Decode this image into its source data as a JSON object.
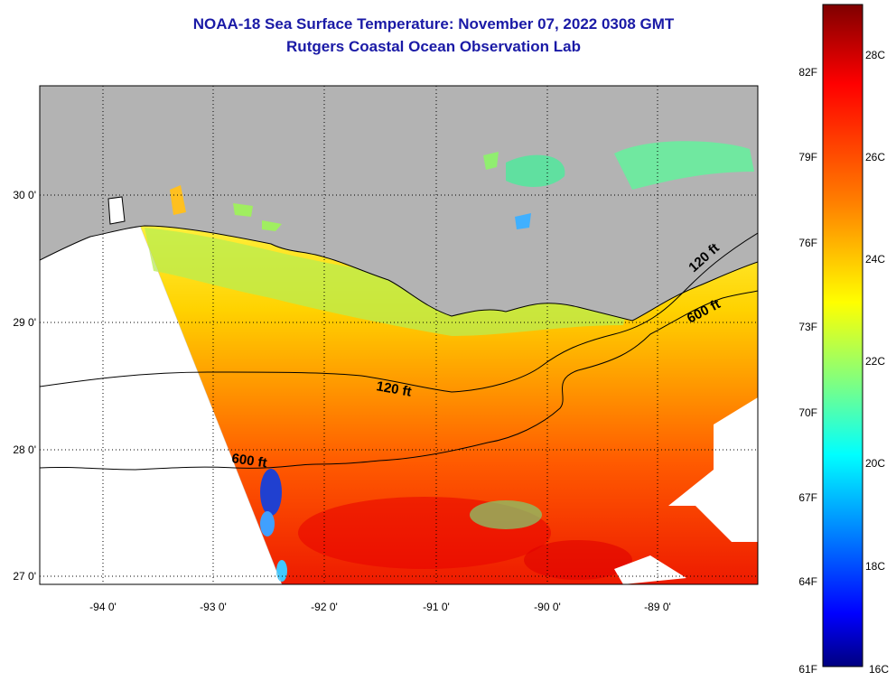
{
  "title": {
    "line1": "NOAA-18 Sea Surface Temperature:  November 07, 2022 0308 GMT",
    "line2": "Rutgers Coastal Ocean Observation Lab"
  },
  "map": {
    "region": "Northern Gulf of Mexico / Louisiana coast",
    "land_color": "#b3b3b3",
    "no_data_color": "#ffffff",
    "lat_labels": [
      "30 0'",
      "29 0'",
      "28 0'",
      "27 0'"
    ],
    "lon_labels": [
      "-94 0'",
      "-93 0'",
      "-92 0'",
      "-91 0'",
      "-90 0'",
      "-89 0'"
    ],
    "contours": [
      {
        "label": "120 ft"
      },
      {
        "label": "600 ft"
      }
    ]
  },
  "colorbar": {
    "fahrenheit_labels": [
      "82F",
      "79F",
      "76F",
      "73F",
      "70F",
      "67F",
      "64F",
      "61F"
    ],
    "celsius_labels": [
      "28C",
      "26C",
      "24C",
      "22C",
      "20C",
      "18C",
      "16C"
    ],
    "colors": [
      "#7f0000",
      "#ff0000",
      "#ff7f00",
      "#ffff00",
      "#7fff7f",
      "#00ffff",
      "#007fff",
      "#0000ff",
      "#00007f"
    ]
  }
}
